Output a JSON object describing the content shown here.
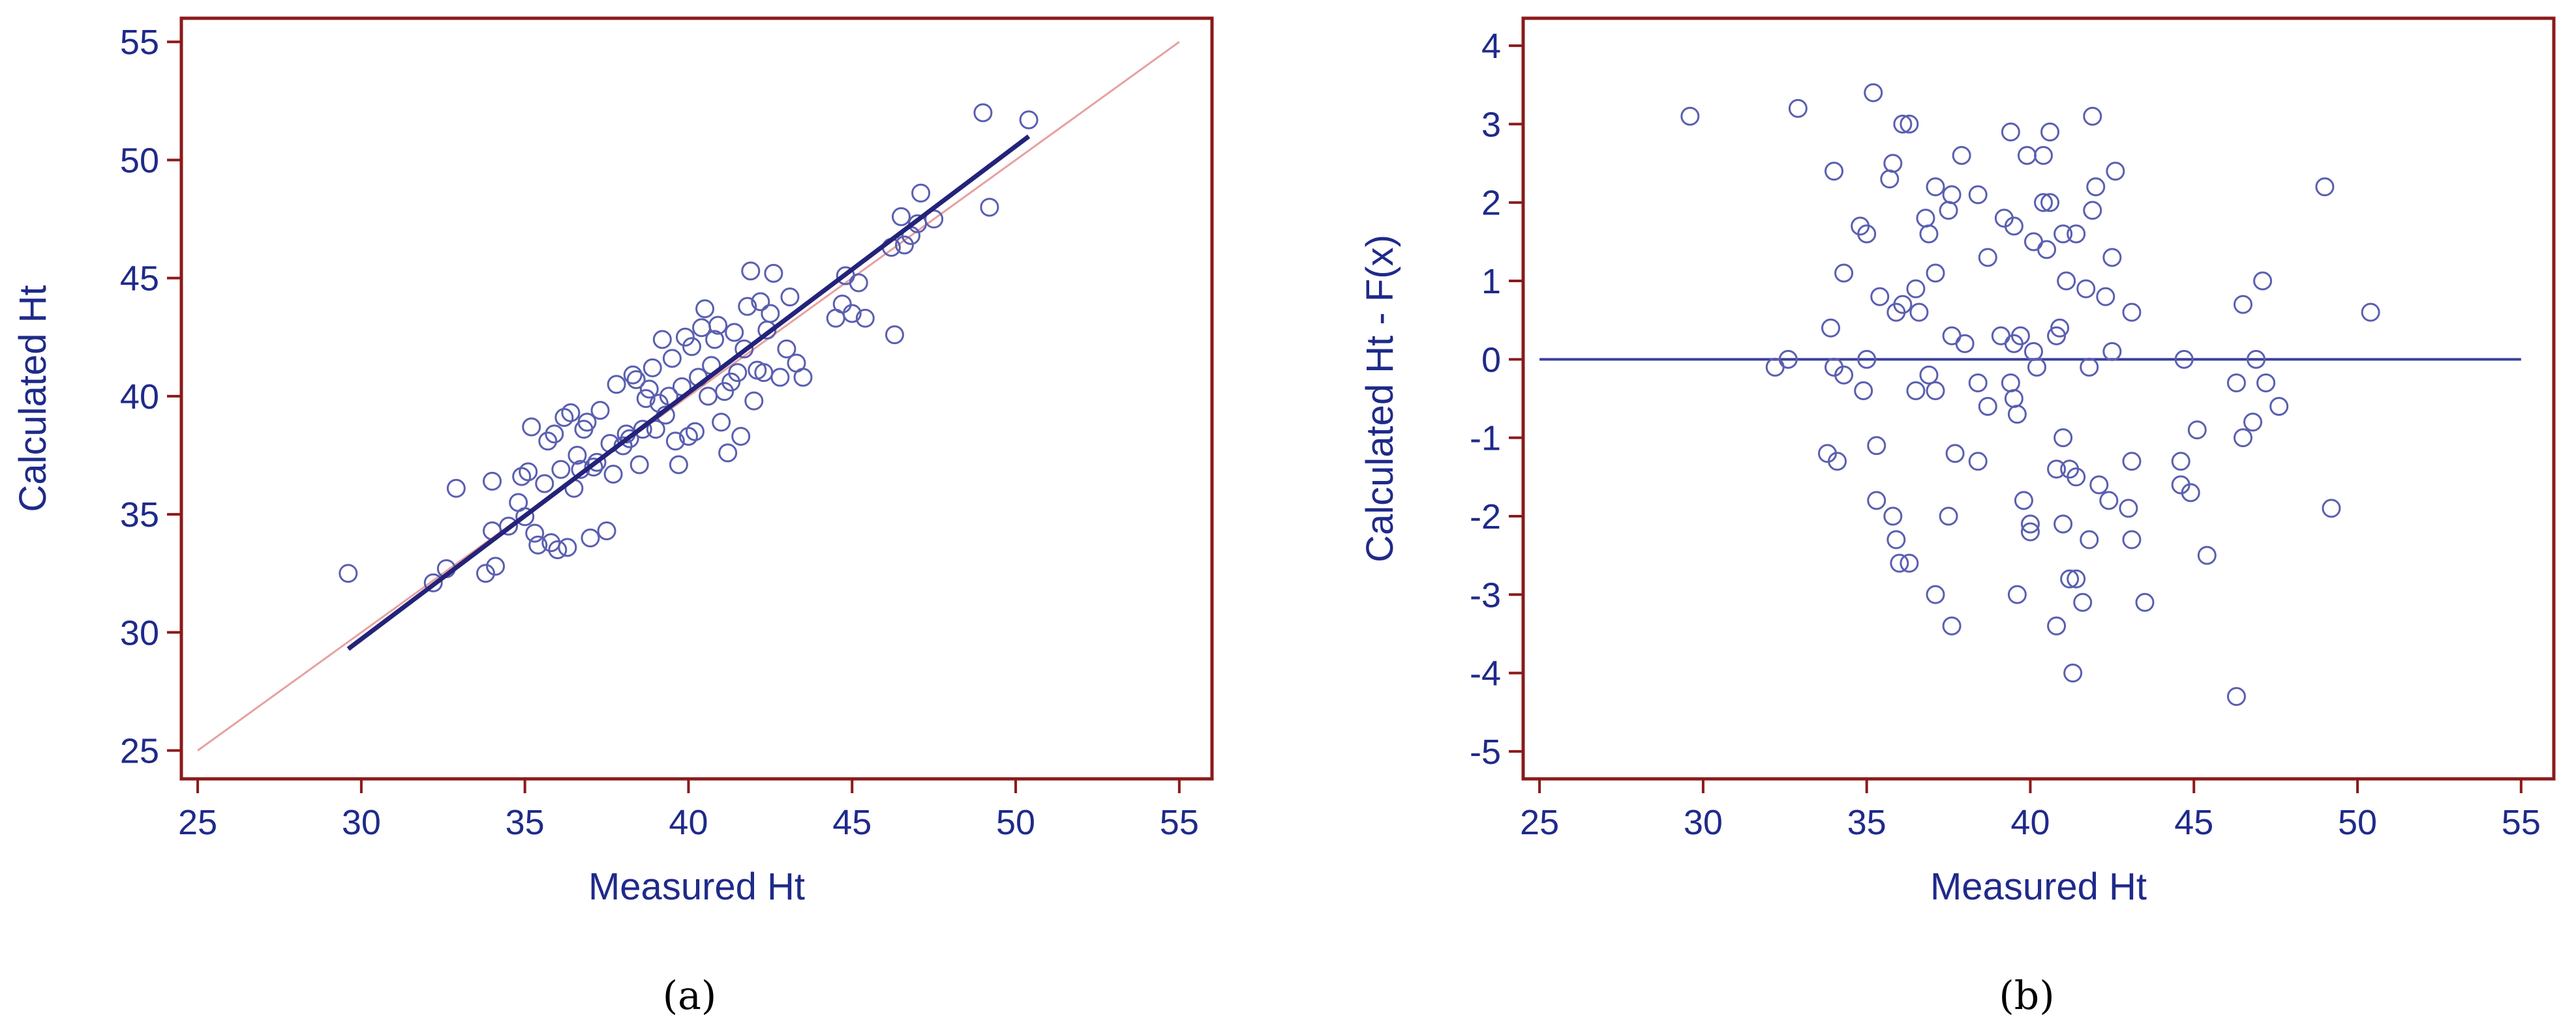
{
  "figure": {
    "panel_a_label": "(a)",
    "panel_b_label": "(b)"
  },
  "colors": {
    "frame": "#8b1a1a",
    "text": "#1f2a8a",
    "marker": "#5a5fb0",
    "fit_line": "#23237a",
    "identity_line": "#e8a0a0",
    "zero_line": "#3a3f9a"
  },
  "chart_data": [
    {
      "type": "scatter",
      "panel": "a",
      "xlabel": "Measured Ht",
      "ylabel": "Calculated Ht",
      "xlim": [
        24.5,
        56
      ],
      "ylim": [
        23.8,
        56
      ],
      "xticks": [
        25,
        30,
        35,
        40,
        45,
        50,
        55
      ],
      "yticks": [
        25,
        30,
        35,
        40,
        45,
        50,
        55
      ],
      "grid": false,
      "points": [
        [
          29.6,
          32.5
        ],
        [
          32.2,
          32.1
        ],
        [
          32.6,
          32.7
        ],
        [
          32.9,
          36.1
        ],
        [
          33.8,
          32.5
        ],
        [
          34.0,
          34.3
        ],
        [
          34.1,
          32.8
        ],
        [
          34.0,
          36.4
        ],
        [
          34.5,
          34.5
        ],
        [
          34.8,
          35.5
        ],
        [
          34.9,
          36.6
        ],
        [
          35.0,
          34.9
        ],
        [
          35.1,
          36.8
        ],
        [
          35.2,
          38.7
        ],
        [
          35.3,
          34.2
        ],
        [
          35.4,
          33.7
        ],
        [
          35.6,
          36.3
        ],
        [
          35.7,
          38.1
        ],
        [
          35.8,
          33.8
        ],
        [
          35.9,
          38.4
        ],
        [
          36.0,
          33.5
        ],
        [
          36.1,
          36.9
        ],
        [
          36.2,
          39.1
        ],
        [
          36.3,
          33.6
        ],
        [
          36.4,
          39.3
        ],
        [
          36.5,
          36.1
        ],
        [
          36.6,
          37.5
        ],
        [
          36.7,
          36.9
        ],
        [
          36.8,
          38.6
        ],
        [
          36.9,
          38.9
        ],
        [
          37.0,
          34.0
        ],
        [
          37.1,
          37.0
        ],
        [
          37.2,
          37.2
        ],
        [
          37.3,
          39.4
        ],
        [
          37.5,
          34.3
        ],
        [
          37.6,
          38.0
        ],
        [
          37.7,
          36.7
        ],
        [
          37.8,
          40.5
        ],
        [
          38.0,
          37.9
        ],
        [
          38.1,
          38.4
        ],
        [
          38.2,
          38.2
        ],
        [
          38.3,
          40.9
        ],
        [
          38.4,
          40.7
        ],
        [
          38.5,
          37.1
        ],
        [
          38.6,
          38.6
        ],
        [
          38.7,
          39.9
        ],
        [
          38.8,
          40.3
        ],
        [
          38.9,
          41.2
        ],
        [
          39.0,
          38.6
        ],
        [
          39.1,
          39.7
        ],
        [
          39.2,
          42.4
        ],
        [
          39.3,
          39.2
        ],
        [
          39.4,
          40.0
        ],
        [
          39.5,
          41.6
        ],
        [
          39.6,
          38.1
        ],
        [
          39.7,
          37.1
        ],
        [
          39.8,
          40.4
        ],
        [
          39.9,
          42.5
        ],
        [
          40.0,
          38.3
        ],
        [
          40.1,
          42.1
        ],
        [
          40.2,
          38.5
        ],
        [
          40.3,
          40.8
        ],
        [
          40.4,
          42.9
        ],
        [
          40.5,
          43.7
        ],
        [
          40.6,
          40.0
        ],
        [
          40.7,
          41.3
        ],
        [
          40.8,
          42.4
        ],
        [
          40.9,
          43.0
        ],
        [
          41.0,
          38.9
        ],
        [
          41.1,
          40.2
        ],
        [
          41.2,
          37.6
        ],
        [
          41.3,
          40.6
        ],
        [
          41.4,
          42.7
        ],
        [
          41.5,
          41.0
        ],
        [
          41.6,
          38.3
        ],
        [
          41.7,
          42.0
        ],
        [
          41.8,
          43.8
        ],
        [
          41.9,
          45.3
        ],
        [
          42.0,
          39.8
        ],
        [
          42.1,
          41.1
        ],
        [
          42.2,
          44.0
        ],
        [
          42.3,
          41.0
        ],
        [
          42.4,
          42.8
        ],
        [
          42.5,
          43.5
        ],
        [
          42.6,
          45.2
        ],
        [
          42.8,
          40.8
        ],
        [
          43.0,
          42.0
        ],
        [
          43.1,
          44.2
        ],
        [
          43.3,
          41.4
        ],
        [
          43.5,
          40.8
        ],
        [
          44.5,
          43.3
        ],
        [
          44.7,
          43.9
        ],
        [
          44.8,
          45.1
        ],
        [
          45.0,
          43.5
        ],
        [
          45.2,
          44.8
        ],
        [
          45.4,
          43.3
        ],
        [
          46.2,
          46.3
        ],
        [
          46.3,
          42.6
        ],
        [
          46.5,
          47.6
        ],
        [
          46.6,
          46.4
        ],
        [
          46.8,
          46.8
        ],
        [
          47.0,
          47.3
        ],
        [
          47.1,
          48.6
        ],
        [
          47.5,
          47.5
        ],
        [
          49.0,
          52.0
        ],
        [
          49.2,
          48.0
        ],
        [
          50.4,
          51.7
        ]
      ],
      "fit_line": {
        "x": [
          29.6,
          50.4
        ],
        "y": [
          29.3,
          51.0
        ]
      },
      "identity_line": {
        "x": [
          25,
          55
        ],
        "y": [
          25,
          55
        ]
      }
    },
    {
      "type": "scatter",
      "panel": "b",
      "xlabel": "Measured Ht",
      "ylabel": "Calculated Ht - F(x)",
      "xlim": [
        24.5,
        56
      ],
      "ylim": [
        -5.35,
        4.35
      ],
      "xticks": [
        25,
        30,
        35,
        40,
        45,
        50,
        55
      ],
      "yticks": [
        -5,
        -4,
        -3,
        -2,
        -1,
        0,
        1,
        2,
        3,
        4
      ],
      "grid": false,
      "points": [
        [
          29.6,
          3.1
        ],
        [
          32.9,
          3.2
        ],
        [
          35.2,
          3.4
        ],
        [
          36.1,
          3.0
        ],
        [
          36.3,
          3.0
        ],
        [
          39.4,
          2.9
        ],
        [
          40.6,
          2.9
        ],
        [
          41.9,
          3.1
        ],
        [
          34.0,
          2.4
        ],
        [
          35.8,
          2.5
        ],
        [
          35.7,
          2.3
        ],
        [
          37.1,
          2.2
        ],
        [
          37.6,
          2.1
        ],
        [
          37.9,
          2.6
        ],
        [
          38.4,
          2.1
        ],
        [
          39.9,
          2.6
        ],
        [
          40.4,
          2.6
        ],
        [
          42.0,
          2.2
        ],
        [
          42.6,
          2.4
        ],
        [
          49.0,
          2.2
        ],
        [
          34.8,
          1.7
        ],
        [
          35.0,
          1.6
        ],
        [
          36.8,
          1.8
        ],
        [
          36.9,
          1.6
        ],
        [
          37.5,
          1.9
        ],
        [
          39.2,
          1.8
        ],
        [
          39.5,
          1.7
        ],
        [
          40.1,
          1.5
        ],
        [
          40.4,
          2.0
        ],
        [
          40.6,
          2.0
        ],
        [
          41.0,
          1.6
        ],
        [
          41.4,
          1.6
        ],
        [
          41.9,
          1.9
        ],
        [
          42.5,
          1.3
        ],
        [
          34.3,
          1.1
        ],
        [
          35.4,
          0.8
        ],
        [
          36.1,
          0.7
        ],
        [
          36.5,
          0.9
        ],
        [
          37.1,
          1.1
        ],
        [
          38.7,
          1.3
        ],
        [
          40.5,
          1.4
        ],
        [
          41.1,
          1.0
        ],
        [
          41.7,
          0.9
        ],
        [
          42.3,
          0.8
        ],
        [
          43.1,
          0.6
        ],
        [
          46.5,
          0.7
        ],
        [
          47.1,
          1.0
        ],
        [
          50.4,
          0.6
        ],
        [
          33.9,
          0.4
        ],
        [
          35.9,
          0.6
        ],
        [
          36.6,
          0.6
        ],
        [
          37.6,
          0.3
        ],
        [
          38.0,
          0.2
        ],
        [
          39.1,
          0.3
        ],
        [
          39.5,
          0.2
        ],
        [
          39.7,
          0.3
        ],
        [
          40.1,
          0.1
        ],
        [
          40.8,
          0.3
        ],
        [
          40.9,
          0.4
        ],
        [
          42.5,
          0.1
        ],
        [
          44.7,
          0.0
        ],
        [
          46.9,
          0.0
        ],
        [
          32.2,
          -0.1
        ],
        [
          32.6,
          0.0
        ],
        [
          34.0,
          -0.1
        ],
        [
          34.3,
          -0.2
        ],
        [
          34.9,
          -0.4
        ],
        [
          35.0,
          0.0
        ],
        [
          36.5,
          -0.4
        ],
        [
          36.9,
          -0.2
        ],
        [
          37.1,
          -0.4
        ],
        [
          38.4,
          -0.3
        ],
        [
          38.7,
          -0.6
        ],
        [
          39.4,
          -0.3
        ],
        [
          39.5,
          -0.5
        ],
        [
          39.6,
          -0.7
        ],
        [
          40.2,
          -0.1
        ],
        [
          41.8,
          -0.1
        ],
        [
          46.3,
          -0.3
        ],
        [
          47.2,
          -0.3
        ],
        [
          47.6,
          -0.6
        ],
        [
          33.8,
          -1.2
        ],
        [
          34.1,
          -1.3
        ],
        [
          35.3,
          -1.1
        ],
        [
          37.7,
          -1.2
        ],
        [
          38.4,
          -1.3
        ],
        [
          41.0,
          -1.0
        ],
        [
          40.8,
          -1.4
        ],
        [
          41.2,
          -1.4
        ],
        [
          41.4,
          -1.5
        ],
        [
          42.1,
          -1.6
        ],
        [
          42.4,
          -1.8
        ],
        [
          43.1,
          -1.3
        ],
        [
          44.6,
          -1.3
        ],
        [
          44.6,
          -1.6
        ],
        [
          44.9,
          -1.7
        ],
        [
          45.1,
          -0.9
        ],
        [
          46.5,
          -1.0
        ],
        [
          46.8,
          -0.8
        ],
        [
          35.3,
          -1.8
        ],
        [
          35.8,
          -2.0
        ],
        [
          35.9,
          -2.3
        ],
        [
          36.0,
          -2.6
        ],
        [
          36.3,
          -2.6
        ],
        [
          37.5,
          -2.0
        ],
        [
          39.8,
          -1.8
        ],
        [
          40.0,
          -2.2
        ],
        [
          40.0,
          -2.1
        ],
        [
          41.0,
          -2.1
        ],
        [
          41.8,
          -2.3
        ],
        [
          43.0,
          -1.9
        ],
        [
          43.1,
          -2.3
        ],
        [
          45.4,
          -2.5
        ],
        [
          49.2,
          -1.9
        ],
        [
          37.1,
          -3.0
        ],
        [
          37.6,
          -3.4
        ],
        [
          39.6,
          -3.0
        ],
        [
          40.8,
          -3.4
        ],
        [
          41.2,
          -2.8
        ],
        [
          41.4,
          -2.8
        ],
        [
          41.6,
          -3.1
        ],
        [
          41.3,
          -4.0
        ],
        [
          43.5,
          -3.1
        ],
        [
          46.3,
          -4.3
        ]
      ],
      "zero_line": {
        "x": [
          25,
          55
        ],
        "y": [
          0,
          0
        ]
      }
    }
  ]
}
